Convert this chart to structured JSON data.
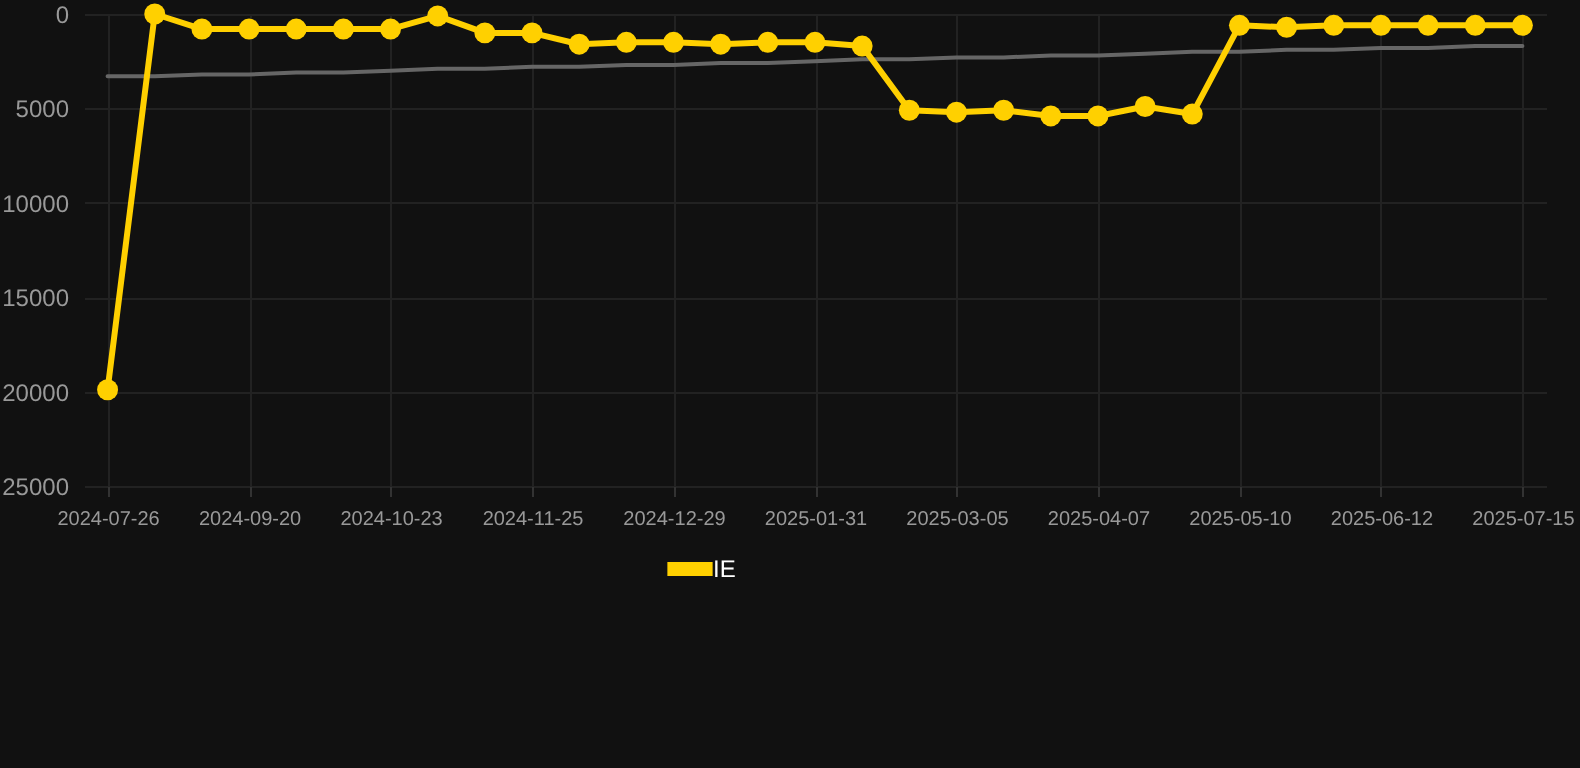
{
  "chart_data": {
    "type": "line",
    "categories": [
      "2024-07-26",
      null,
      null,
      "2024-09-20",
      null,
      null,
      "2024-10-23",
      null,
      null,
      "2024-11-25",
      null,
      null,
      "2024-12-29",
      null,
      null,
      "2025-01-31",
      null,
      null,
      "2025-03-05",
      null,
      null,
      "2025-04-07",
      null,
      null,
      "2025-05-10",
      null,
      null,
      "2025-06-12",
      null,
      null,
      "2025-07-15"
    ],
    "series": [
      {
        "name": "IE",
        "color": "#ffd000",
        "marker": "circle",
        "values": [
          19900,
          0,
          800,
          800,
          800,
          800,
          800,
          100,
          1000,
          1000,
          1600,
          1500,
          1500,
          1600,
          1500,
          1500,
          1700,
          5100,
          5200,
          5100,
          5400,
          5400,
          4900,
          5300,
          600,
          700,
          600,
          600,
          600,
          600,
          600
        ]
      },
      {
        "color": "#666666",
        "marker": "none",
        "values": [
          3300,
          3300,
          3200,
          3200,
          3100,
          3100,
          3000,
          2900,
          2900,
          2800,
          2800,
          2700,
          2700,
          2600,
          2600,
          2500,
          2400,
          2400,
          2300,
          2300,
          2200,
          2200,
          2100,
          2000,
          2000,
          1900,
          1900,
          1800,
          1800,
          1700,
          1700
        ]
      }
    ],
    "ylim": [
      25000,
      0
    ],
    "yticks": [
      0,
      5000,
      10000,
      15000,
      20000,
      25000
    ],
    "grid": true,
    "legend": "bottom",
    "line_style": "solid"
  }
}
